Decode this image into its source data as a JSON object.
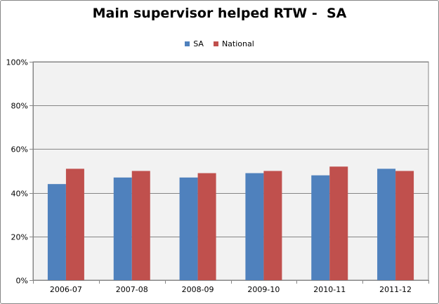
{
  "chart_data": {
    "type": "bar",
    "title": "Main supervisor helped RTW -  SA",
    "categories": [
      "2006-07",
      "2007-08",
      "2008-09",
      "2009-10",
      "2010-11",
      "2011-12"
    ],
    "series": [
      {
        "name": "SA",
        "color": "#4f81bd",
        "values": [
          44,
          47,
          47,
          49,
          48,
          51
        ]
      },
      {
        "name": "National",
        "color": "#c0504d",
        "values": [
          51,
          50,
          49,
          50,
          52,
          50
        ]
      }
    ],
    "ylim": [
      0,
      100
    ],
    "yticks": [
      "0%",
      "20%",
      "40%",
      "60%",
      "80%",
      "100%"
    ],
    "grid": true,
    "legend": "top-center",
    "plot_background": "#f2f2f2"
  }
}
